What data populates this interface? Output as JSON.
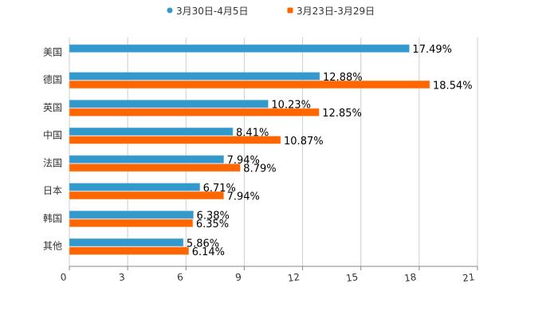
{
  "chart_data": {
    "type": "bar",
    "orientation": "horizontal",
    "categories": [
      "美国",
      "德国",
      "英国",
      "中国",
      "法国",
      "日本",
      "韩国",
      "其他"
    ],
    "series": [
      {
        "name": "3月30日-4月5日",
        "color": "#3399cc",
        "values": [
          17.49,
          12.88,
          10.23,
          8.41,
          7.94,
          6.71,
          6.38,
          5.86
        ],
        "labels": [
          "17.49%",
          "12.88%",
          "10.23%",
          "8.41%",
          "7.94%",
          "6.71%",
          "6.38%",
          "5.86%"
        ]
      },
      {
        "name": "3月23日-3月29日",
        "color": "#ff6600",
        "values": [
          null,
          18.54,
          12.85,
          10.87,
          8.79,
          7.94,
          6.35,
          6.14
        ],
        "labels": [
          "",
          "18.54%",
          "12.85%",
          "10.87%",
          "8.79%",
          "7.94%",
          "6.35%",
          "6.14%"
        ]
      }
    ],
    "xlim": [
      0,
      21
    ],
    "xticks": [
      "0",
      "3",
      "6",
      "9",
      "12",
      "15",
      "18",
      "21"
    ],
    "grid": true,
    "legend": "top-center",
    "title": "",
    "xlabel": "",
    "ylabel": ""
  }
}
